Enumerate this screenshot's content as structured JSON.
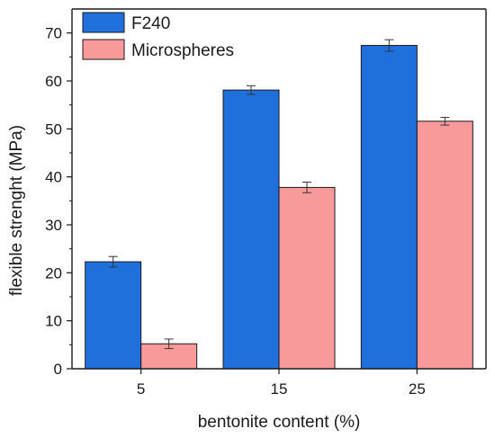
{
  "chart_data": {
    "type": "bar",
    "title": "",
    "xlabel": "bentonite content (%)",
    "ylabel": "flexible strenght (MPa)",
    "categories": [
      "5",
      "15",
      "25"
    ],
    "ylim": [
      0,
      75
    ],
    "yticks": [
      0,
      10,
      20,
      30,
      40,
      50,
      60,
      70
    ],
    "grid": false,
    "legend_position": "top-left",
    "series": [
      {
        "name": "F240",
        "color": "#1f6fdc",
        "values": [
          22.3,
          58.1,
          67.4
        ],
        "errors": [
          1.1,
          0.9,
          1.2
        ]
      },
      {
        "name": "Microspheres",
        "color": "#f99a9a",
        "values": [
          5.2,
          37.8,
          51.6
        ],
        "errors": [
          1.0,
          1.1,
          0.8
        ]
      }
    ]
  }
}
